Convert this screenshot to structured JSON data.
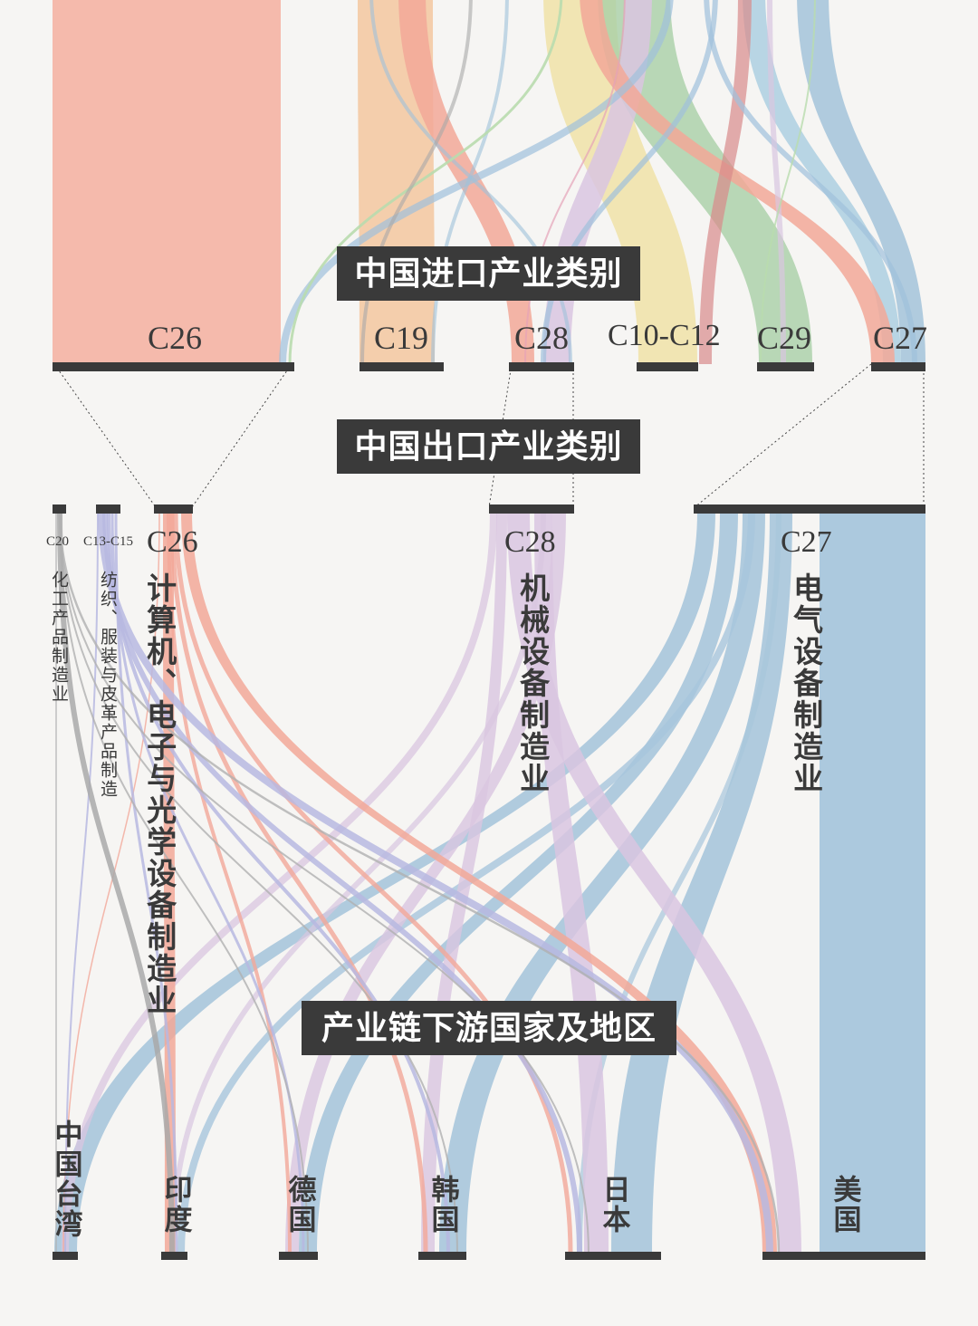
{
  "headings": {
    "imports": "中国进口产业类别",
    "exports": "中国出口产业类别",
    "downstream": "产业链下游国家及地区"
  },
  "import_nodes": [
    {
      "code": "C26",
      "color": "#f4b6a8"
    },
    {
      "code": "C19",
      "color": "#f3c79f"
    },
    {
      "code": "C28",
      "color": "#d9c6e0"
    },
    {
      "code": "C10-C12",
      "color": "#f0e1a2"
    },
    {
      "code": "C29",
      "color": "#a9cfa6"
    },
    {
      "code": "C27",
      "color": "#a8c6dc"
    }
  ],
  "export_nodes": [
    {
      "code": "C20",
      "name": "化工产品制造业",
      "color": "#b9b9b9"
    },
    {
      "code": "C13-C15",
      "name": "纺织、服装与皮革产品制造",
      "color": "#b7b9e0"
    },
    {
      "code": "C26",
      "name": "计算机、电子与光学设备制造业",
      "color": "#f2a898"
    },
    {
      "code": "C28",
      "name": "机械设备制造业",
      "color": "#d9c6e0"
    },
    {
      "code": "C27",
      "name": "电气设备制造业",
      "color": "#a8c6dc"
    }
  ],
  "regions": [
    {
      "name": "中国台湾"
    },
    {
      "name": "印度"
    },
    {
      "name": "德国"
    },
    {
      "name": "韩国"
    },
    {
      "name": "日本"
    },
    {
      "name": "美国"
    }
  ],
  "colors": {
    "background": "#f6f5f3",
    "node_bar": "#3a3a3a",
    "text": "#3a3a3a"
  }
}
